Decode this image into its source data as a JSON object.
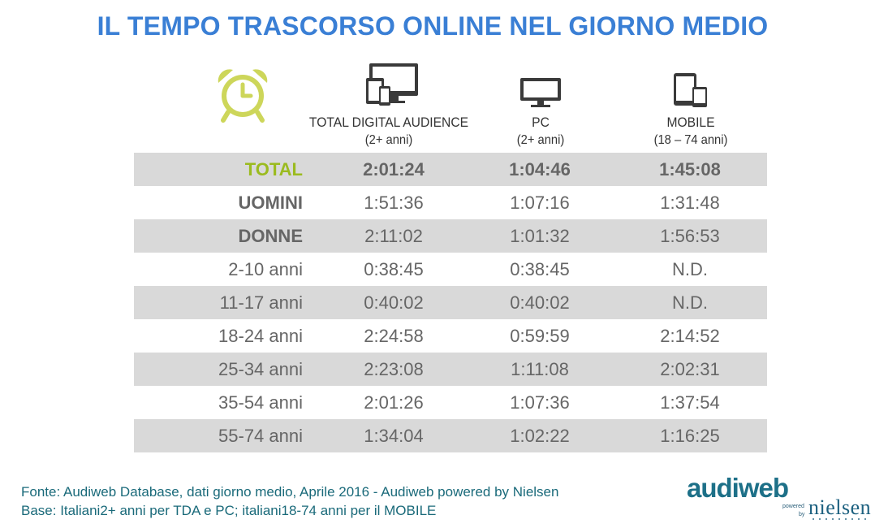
{
  "title": "IL TEMPO TRASCORSO ONLINE NEL GIORNO MEDIO",
  "icons": {
    "clock": "alarm-clock-icon",
    "total_digital": "multi-device-icon",
    "pc": "monitor-icon",
    "mobile": "tablet-phone-icon"
  },
  "colors": {
    "title": "#3a7fd5",
    "total_label": "#9bbb1f",
    "clock": "#cdd65a",
    "row_shade": "#d9d9d9",
    "footer": "#1a6a7a"
  },
  "columns": [
    {
      "label": "TOTAL DIGITAL AUDIENCE",
      "sub": "(2+ anni)"
    },
    {
      "label": "PC",
      "sub": "(2+ anni)"
    },
    {
      "label": "MOBILE",
      "sub": "(18 – 74 anni)"
    }
  ],
  "rows": [
    {
      "label": "TOTAL",
      "values": [
        "2:01:24",
        "1:04:46",
        "1:45:08"
      ]
    },
    {
      "label": "UOMINI",
      "values": [
        "1:51:36",
        "1:07:16",
        "1:31:48"
      ]
    },
    {
      "label": "DONNE",
      "values": [
        "2:11:02",
        "1:01:32",
        "1:56:53"
      ]
    },
    {
      "label": "2-10 anni",
      "values": [
        "0:38:45",
        "0:38:45",
        "N.D."
      ]
    },
    {
      "label": "11-17 anni",
      "values": [
        "0:40:02",
        "0:40:02",
        "N.D."
      ]
    },
    {
      "label": "18-24 anni",
      "values": [
        "2:24:58",
        "0:59:59",
        "2:14:52"
      ]
    },
    {
      "label": "25-34 anni",
      "values": [
        "2:23:08",
        "1:11:08",
        "2:02:31"
      ]
    },
    {
      "label": "35-54 anni",
      "values": [
        "2:01:26",
        "1:07:36",
        "1:37:54"
      ]
    },
    {
      "label": "55-74 anni",
      "values": [
        "1:34:04",
        "1:02:22",
        "1:16:25"
      ]
    }
  ],
  "footer": {
    "line1": "Fonte: Audiweb Database, dati giorno medio, Aprile 2016 - Audiweb powered by Nielsen",
    "line2": "Base: Italiani2+ anni per TDA e PC; italiani18-74 anni per il MOBILE"
  },
  "logo": {
    "name": "audiweb",
    "powered": "powered",
    "by": "by",
    "partner": "nielsen"
  }
}
